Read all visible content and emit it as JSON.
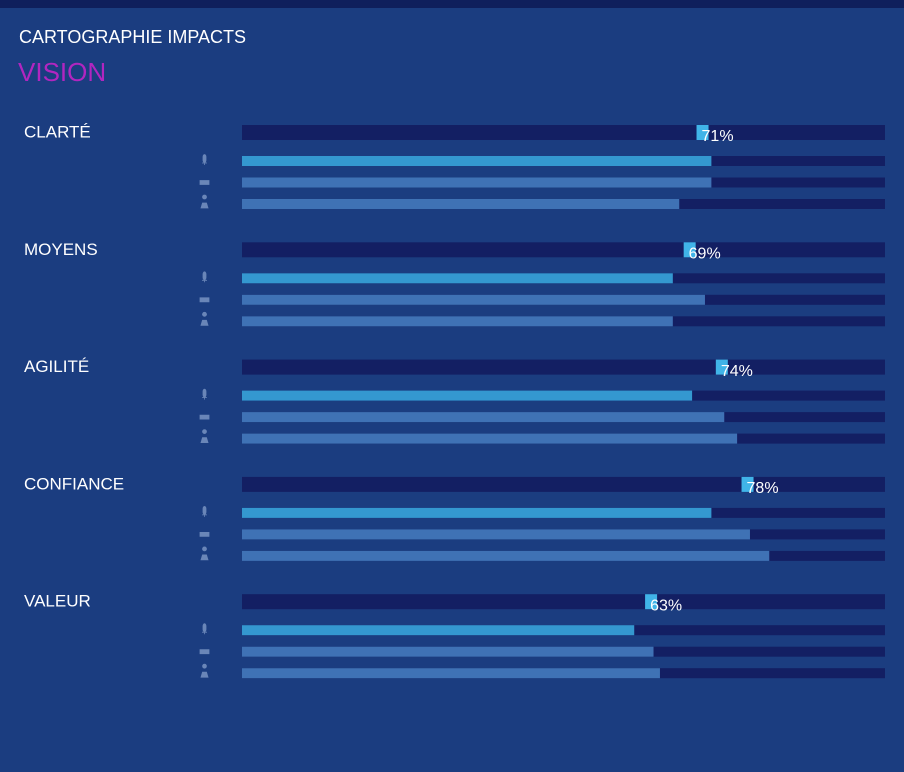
{
  "header": {
    "title": "CARTOGRAPHIE IMPACTS",
    "subtitle": "VISION"
  },
  "chart_data": {
    "type": "bar-list",
    "categories": [
      "CLARTÉ",
      "MOYENS",
      "AGILITÉ",
      "CONFIANCE",
      "VALEUR"
    ],
    "values": [
      71,
      69,
      74,
      78,
      63
    ],
    "value_labels": [
      "71%",
      "69%",
      "74%",
      "78%",
      "63%"
    ],
    "color": "#40b4e8",
    "xlim": [
      0,
      100
    ],
    "series": [
      {
        "color": "#3498d0",
        "values": [
          73,
          67,
          70,
          73,
          61
        ]
      },
      {
        "color": "#3f72b5",
        "values": [
          73,
          72,
          75,
          79,
          64
        ]
      },
      {
        "color": "#3f72b5",
        "values": [
          68,
          67,
          77,
          82,
          65
        ]
      }
    ]
  }
}
